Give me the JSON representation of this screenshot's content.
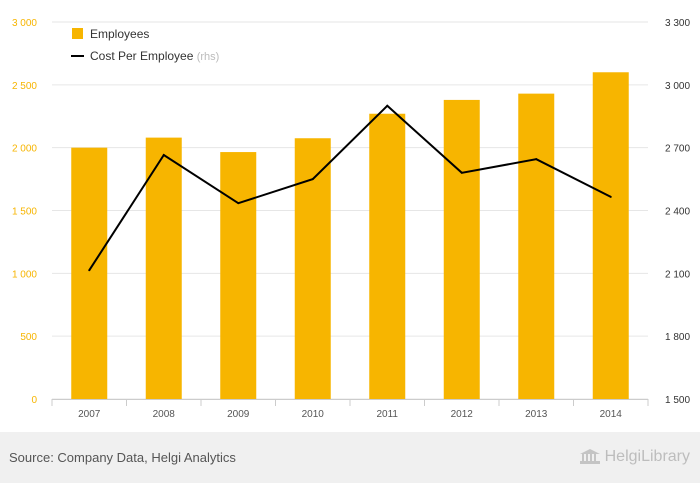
{
  "chart_data": {
    "type": "bar",
    "categories": [
      "2007",
      "2008",
      "2009",
      "2010",
      "2011",
      "2012",
      "2013",
      "2014"
    ],
    "series": [
      {
        "name": "Employees",
        "type": "bar",
        "axis": "left",
        "color": "#f7b500",
        "values": [
          2000,
          2080,
          1965,
          2075,
          2270,
          2380,
          2430,
          2600
        ]
      },
      {
        "name": "Cost Per Employee",
        "type": "line",
        "axis": "right",
        "color": "#000000",
        "values": [
          2115,
          2665,
          2435,
          2550,
          2900,
          2580,
          2645,
          2465
        ]
      }
    ],
    "legend": {
      "items": [
        {
          "label": "Employees",
          "suffix": ""
        },
        {
          "label": "Cost Per Employee",
          "suffix": "(rhs)"
        }
      ],
      "position": "top-left"
    },
    "y_left": {
      "range": [
        0,
        3000
      ],
      "ticks": [
        0,
        500,
        1000,
        1500,
        2000,
        2500,
        3000
      ],
      "tick_labels": [
        "0",
        "500",
        "1 000",
        "1 500",
        "2 000",
        "2 500",
        "3 000"
      ],
      "color": "#f7b500"
    },
    "y_right": {
      "range": [
        1500,
        3300
      ],
      "ticks": [
        1500,
        1800,
        2100,
        2400,
        2700,
        3000,
        3300
      ],
      "tick_labels": [
        "1 500",
        "1 800",
        "2 100",
        "2 400",
        "2 700",
        "3 000",
        "3 300"
      ],
      "color": "#333333"
    },
    "grid": "horizontal",
    "title": "",
    "xlabel": "",
    "ylabel": ""
  },
  "footer": {
    "source": "Source: Company Data, Helgi Analytics",
    "logo_text": "HelgiLibrary"
  }
}
